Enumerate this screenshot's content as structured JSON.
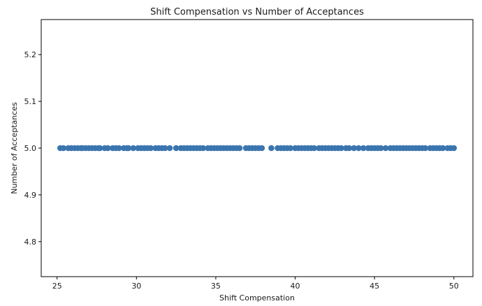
{
  "chart_data": {
    "type": "scatter",
    "title": "Shift Compensation vs Number of Acceptances",
    "xlabel": "Shift Compensation",
    "ylabel": "Number of Acceptances",
    "xlim": [
      24.0,
      51.2
    ],
    "ylim": [
      4.725,
      5.275
    ],
    "xticks": [
      25,
      30,
      35,
      40,
      45,
      50
    ],
    "xtick_labels": [
      "25",
      "30",
      "35",
      "40",
      "45",
      "50"
    ],
    "yticks": [
      4.8,
      4.9,
      5.0,
      5.1,
      5.2
    ],
    "ytick_labels": [
      "4.8",
      "4.9",
      "5.0",
      "5.1",
      "5.2"
    ],
    "grid": false,
    "marker_color": "#3b75af",
    "series": [
      {
        "x": [
          25.2,
          25.4,
          25.7,
          25.9,
          26.1,
          26.3,
          26.5,
          26.6,
          26.8,
          27.0,
          27.2,
          27.4,
          27.6,
          27.7,
          28.0,
          28.2,
          28.5,
          28.7,
          28.9,
          29.2,
          29.4,
          29.5,
          29.8,
          30.1,
          30.3,
          30.5,
          30.7,
          30.9,
          31.2,
          31.4,
          31.6,
          31.8,
          32.1,
          32.5,
          32.8,
          33.0,
          33.2,
          33.4,
          33.6,
          33.8,
          34.0,
          34.2,
          34.5,
          34.7,
          34.9,
          35.1,
          35.3,
          35.5,
          35.7,
          35.9,
          36.1,
          36.3,
          36.5,
          36.9,
          37.1,
          37.3,
          37.5,
          37.7,
          37.9,
          38.5,
          38.9,
          39.1,
          39.3,
          39.5,
          39.7,
          40.0,
          40.2,
          40.4,
          40.6,
          40.8,
          41.0,
          41.2,
          41.5,
          41.7,
          41.9,
          42.1,
          42.3,
          42.5,
          42.7,
          42.9,
          43.2,
          43.4,
          43.7,
          44.0,
          44.3,
          44.6,
          44.8,
          45.0,
          45.2,
          45.4,
          45.7,
          46.0,
          46.2,
          46.4,
          46.6,
          46.8,
          47.0,
          47.2,
          47.4,
          47.6,
          47.8,
          48.0,
          48.2,
          48.5,
          48.7,
          48.9,
          49.1,
          49.3,
          49.6,
          49.8,
          50.0
        ],
        "y": [
          5.0,
          5.0,
          5.0,
          5.0,
          5.0,
          5.0,
          5.0,
          5.0,
          5.0,
          5.0,
          5.0,
          5.0,
          5.0,
          5.0,
          5.0,
          5.0,
          5.0,
          5.0,
          5.0,
          5.0,
          5.0,
          5.0,
          5.0,
          5.0,
          5.0,
          5.0,
          5.0,
          5.0,
          5.0,
          5.0,
          5.0,
          5.0,
          5.0,
          5.0,
          5.0,
          5.0,
          5.0,
          5.0,
          5.0,
          5.0,
          5.0,
          5.0,
          5.0,
          5.0,
          5.0,
          5.0,
          5.0,
          5.0,
          5.0,
          5.0,
          5.0,
          5.0,
          5.0,
          5.0,
          5.0,
          5.0,
          5.0,
          5.0,
          5.0,
          5.0,
          5.0,
          5.0,
          5.0,
          5.0,
          5.0,
          5.0,
          5.0,
          5.0,
          5.0,
          5.0,
          5.0,
          5.0,
          5.0,
          5.0,
          5.0,
          5.0,
          5.0,
          5.0,
          5.0,
          5.0,
          5.0,
          5.0,
          5.0,
          5.0,
          5.0,
          5.0,
          5.0,
          5.0,
          5.0,
          5.0,
          5.0,
          5.0,
          5.0,
          5.0,
          5.0,
          5.0,
          5.0,
          5.0,
          5.0,
          5.0,
          5.0,
          5.0,
          5.0,
          5.0,
          5.0,
          5.0,
          5.0,
          5.0,
          5.0,
          5.0,
          5.0
        ]
      }
    ]
  }
}
